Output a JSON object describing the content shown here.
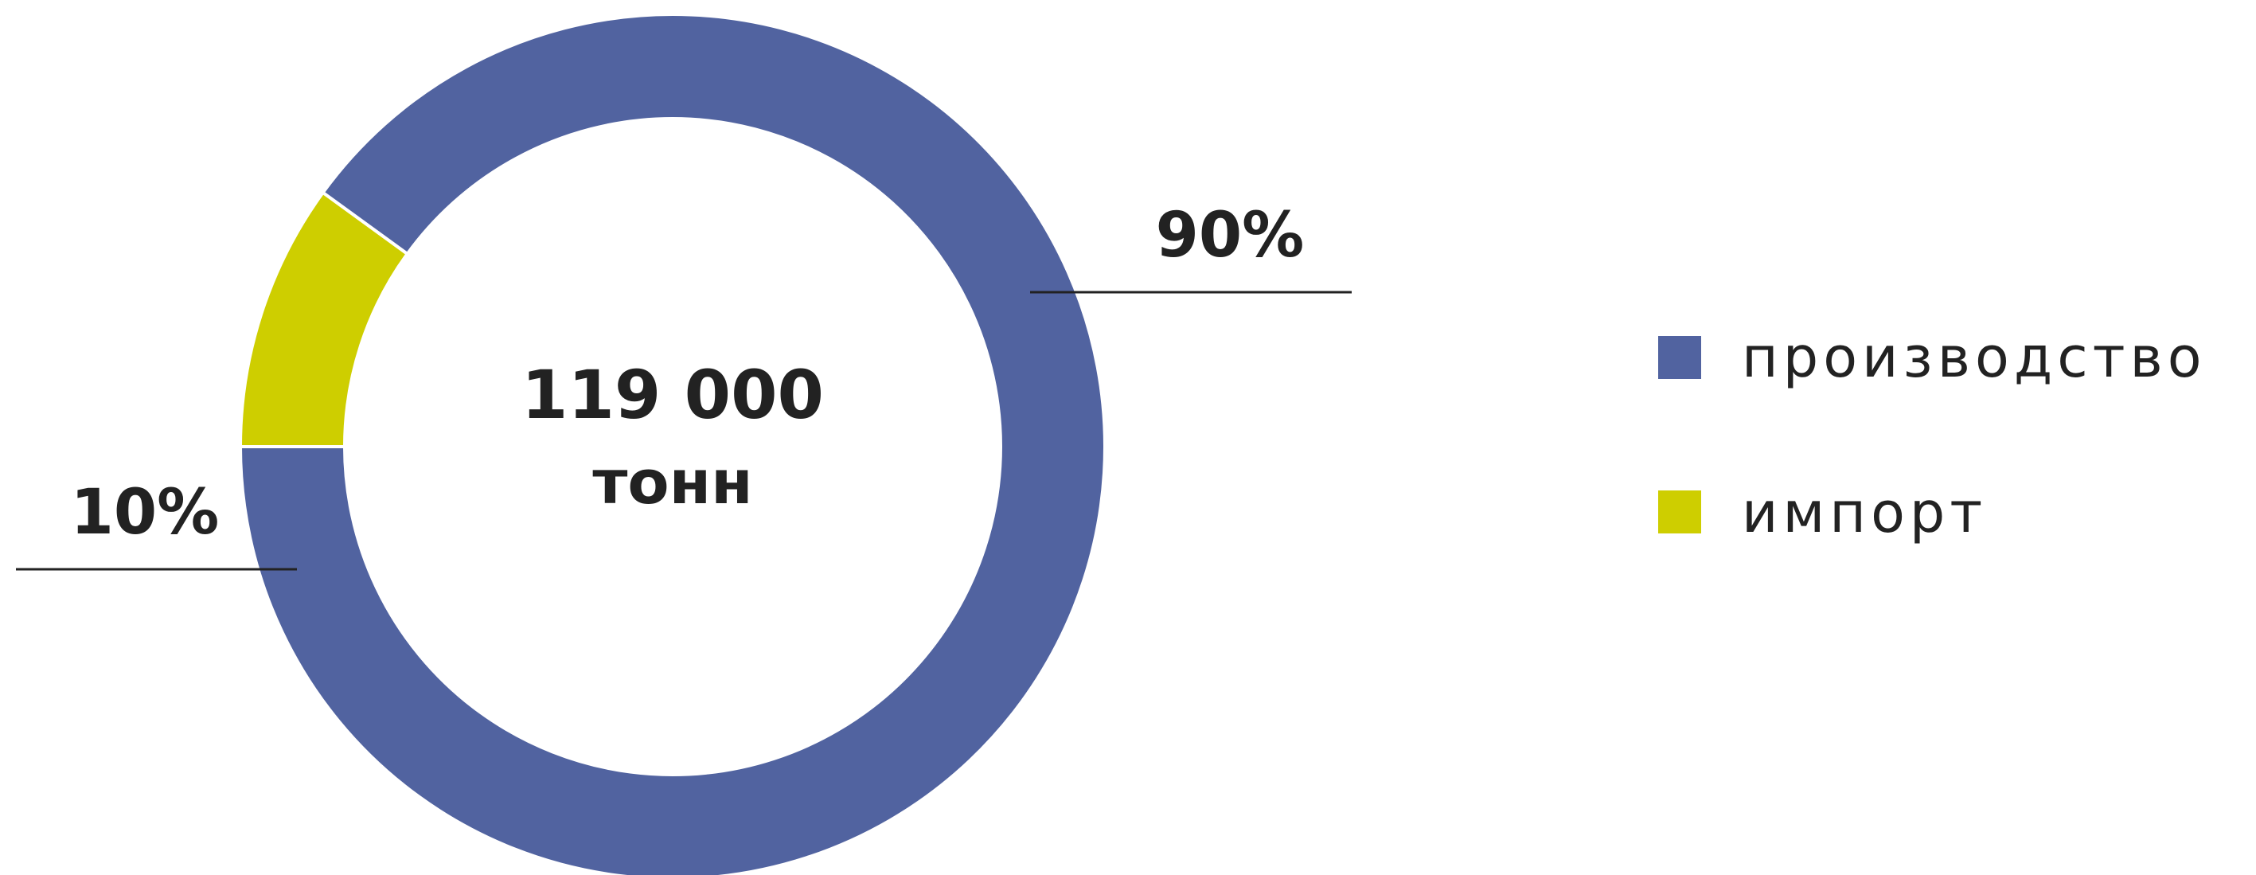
{
  "chart_data": {
    "type": "pie",
    "donut": true,
    "center_label": {
      "value": "119 000",
      "unit": "тонн"
    },
    "slices": [
      {
        "name": "производство",
        "value": 90,
        "label": "90%",
        "color": "#5163A0"
      },
      {
        "name": "импорт",
        "value": 10,
        "label": "10%",
        "color": "#CECE00"
      }
    ],
    "legend": {
      "position": "right",
      "items": [
        "производство",
        "импорт"
      ]
    }
  }
}
